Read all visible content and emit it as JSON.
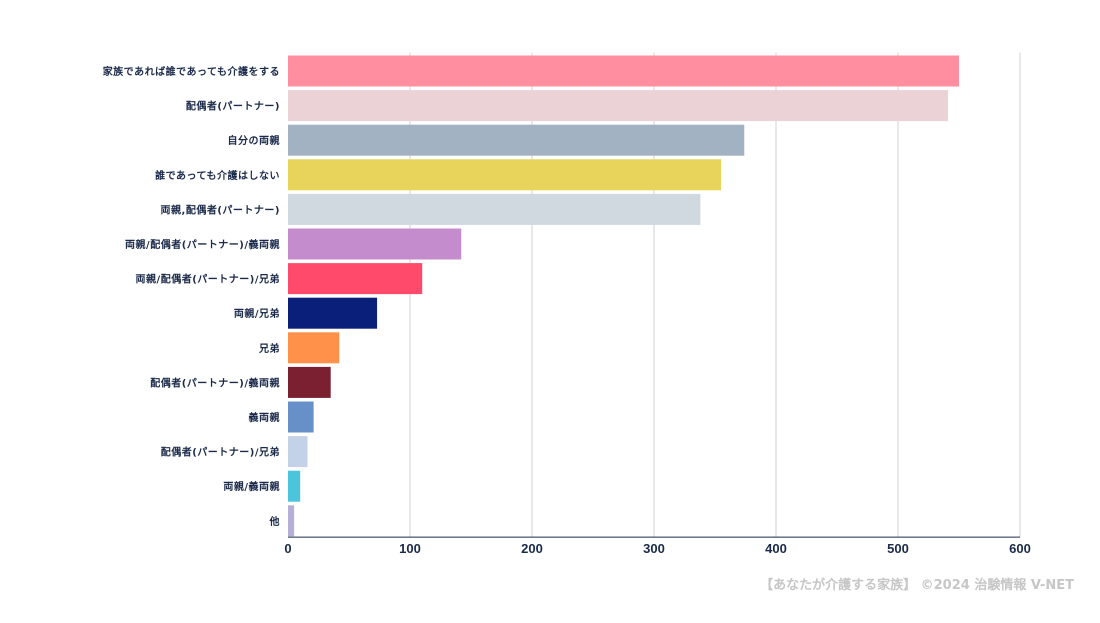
{
  "chart_data": {
    "type": "bar",
    "orientation": "horizontal",
    "categories": [
      "家族であれば誰であっても介護をする",
      "配偶者(パートナー)",
      "自分の両親",
      "誰であっても介護はしない",
      "両親,配偶者(パートナー)",
      "両親/配偶者(パートナー)/義両親",
      "両親/配偶者(パートナー)/兄弟",
      "両親/兄弟",
      "兄弟",
      "配偶者(パートナー)/義両親",
      "義両親",
      "配偶者(パートナー)/兄弟",
      "両親/義両親",
      "他"
    ],
    "values": [
      550,
      541,
      374,
      355,
      338,
      142,
      110,
      73,
      42,
      35,
      21,
      16,
      10,
      5
    ],
    "colors": [
      "#ff8fa0",
      "#ebd2d6",
      "#a3b2c2",
      "#e8d45a",
      "#d0d8e0",
      "#c48ccd",
      "#ff4a6b",
      "#0a1f7a",
      "#ff914a",
      "#7a2030",
      "#6890c8",
      "#c4d2e8",
      "#4cc4dc",
      "#b6b0d8"
    ],
    "x_ticks": [
      0,
      100,
      200,
      300,
      400,
      500,
      600
    ],
    "xlim": [
      0,
      600
    ],
    "grid": true,
    "title": "",
    "xlabel": "",
    "ylabel": ""
  },
  "credit": "【あなたが介護する家族】 ©2024 治験情報 V-NET"
}
